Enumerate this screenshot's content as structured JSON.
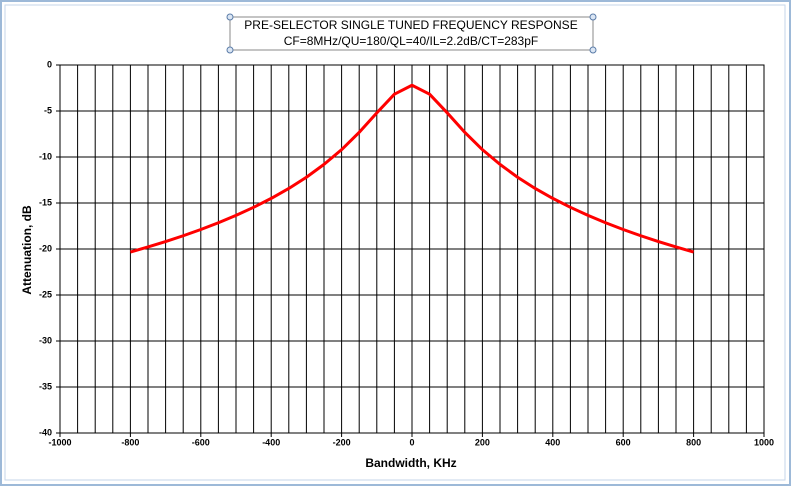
{
  "chart_data": {
    "type": "line",
    "title": "PRE-SELECTOR SINGLE TUNED FREQUENCY RESPONSE",
    "subtitle": "CF=8MHz/QU=180/QL=40/IL=2.2dB/CT=283pF",
    "x_label": "Bandwidth, KHz",
    "y_label": "Attenuation, dB",
    "x": [
      -800,
      -750,
      -700,
      -650,
      -600,
      -550,
      -500,
      -450,
      -400,
      -350,
      -300,
      -250,
      -200,
      -150,
      -100,
      -50,
      0,
      50,
      100,
      150,
      200,
      250,
      300,
      350,
      400,
      450,
      500,
      550,
      600,
      650,
      700,
      750,
      800
    ],
    "series": [
      {
        "color": "#ff0000",
        "values": [
          -20.33,
          -19.78,
          -19.19,
          -18.56,
          -17.88,
          -17.15,
          -16.35,
          -15.47,
          -14.5,
          -13.42,
          -12.2,
          -10.8,
          -9.2,
          -7.32,
          -5.2,
          -3.17,
          -2.2,
          -3.17,
          -5.2,
          -7.32,
          -9.2,
          -10.8,
          -12.2,
          -13.42,
          -14.5,
          -15.47,
          -16.35,
          -17.15,
          -17.88,
          -18.56,
          -19.19,
          -19.78,
          -20.33
        ]
      }
    ],
    "xlim": [
      -1000,
      1000
    ],
    "xticks": [
      -1000,
      -800,
      -600,
      -400,
      -200,
      0,
      200,
      400,
      600,
      800,
      1000
    ],
    "xgrid_step": 50,
    "ylim": [
      -40,
      0
    ],
    "yticks": [
      0,
      -5,
      -10,
      -15,
      -20,
      -25,
      -30,
      -35,
      -40
    ],
    "grid": true
  }
}
